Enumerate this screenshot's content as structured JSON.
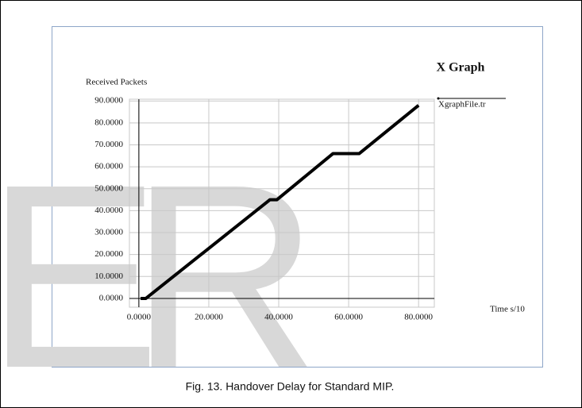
{
  "watermark": "ER",
  "chart_data": {
    "type": "line",
    "title": "X Graph",
    "y_label": "Received Packets",
    "x_label": "Time s/10",
    "caption": "Fig. 13. Handover Delay for Standard MIP.",
    "x": [
      0.5,
      2,
      37.5,
      39.5,
      55.5,
      63,
      80
    ],
    "series": [
      {
        "name": "XgraphFile.tr",
        "color": "#000000",
        "values": [
          0,
          0,
          45,
          45,
          66,
          66,
          88
        ]
      }
    ],
    "xlim": [
      -2.7,
      84.5
    ],
    "ylim": [
      -4,
      90.8
    ],
    "xticks": [
      {
        "value": 0,
        "label": "0.0000"
      },
      {
        "value": 20,
        "label": "20.0000"
      },
      {
        "value": 40,
        "label": "40.0000"
      },
      {
        "value": 60,
        "label": "60.0000"
      },
      {
        "value": 80,
        "label": "80.0000"
      }
    ],
    "yticks": [
      {
        "value": 0,
        "label": "0.0000"
      },
      {
        "value": 10,
        "label": "10.0000"
      },
      {
        "value": 20,
        "label": "20.0000"
      },
      {
        "value": 30,
        "label": "30.0000"
      },
      {
        "value": 40,
        "label": "40.0000"
      },
      {
        "value": 50,
        "label": "50.0000"
      },
      {
        "value": 60,
        "label": "60.0000"
      },
      {
        "value": 70,
        "label": "70.0000"
      },
      {
        "value": 80,
        "label": "80.0000"
      },
      {
        "value": 90,
        "label": "90.0000"
      }
    ],
    "grid": true
  }
}
